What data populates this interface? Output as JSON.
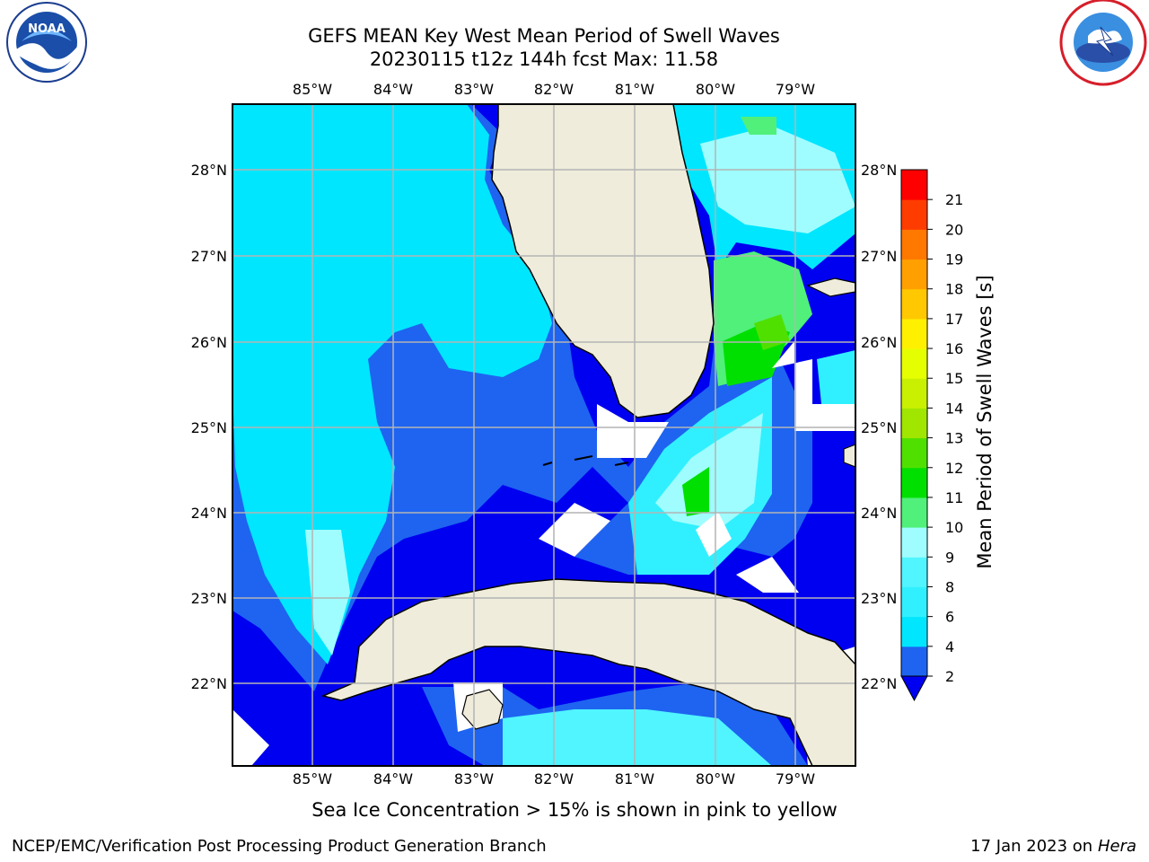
{
  "title": {
    "line1": "GEFS MEAN Key West Mean Period of Swell Waves",
    "line2": "20230115 t12z 144h fcst   Max: 11.58"
  },
  "note": "Sea Ice Concentration > 15% is shown in pink to yellow",
  "footer": {
    "left": "NCEP/EMC/Verification Post Processing Product Generation Branch",
    "date": "17 Jan 2023 on ",
    "machine": "Hera"
  },
  "logos": {
    "left": "NOAA",
    "right": "NATIONAL WEATHER SERVICE"
  },
  "map": {
    "lon_range": [
      -86.0,
      -78.25
    ],
    "lat_range": [
      21.0,
      28.75
    ],
    "lon_ticks": [
      "85°W",
      "84°W",
      "83°W",
      "82°W",
      "81°W",
      "80°W",
      "79°W"
    ],
    "lat_ticks": [
      "22°N",
      "23°N",
      "24°N",
      "25°N",
      "26°N",
      "27°N",
      "28°N"
    ],
    "gridlines": true,
    "land_color": "#efecdb",
    "regions": [
      "Florida",
      "Cuba",
      "Bahamas"
    ]
  },
  "colorbar": {
    "label": "Mean Period of Swell Waves [s]",
    "ticks": [
      "2",
      "4",
      "6",
      "8",
      "9",
      "10",
      "11",
      "12",
      "13",
      "14",
      "15",
      "16",
      "17",
      "18",
      "19",
      "20",
      "21"
    ],
    "extend": "min",
    "colors": [
      "#1e64f0",
      "#00e6ff",
      "#30f0ff",
      "#50f5ff",
      "#9ffdff",
      "#50f07a",
      "#00e000",
      "#50e000",
      "#a0e600",
      "#c8f000",
      "#e6ff00",
      "#fff000",
      "#ffc800",
      "#ffa000",
      "#ff7800",
      "#ff3c00",
      "#ff0000"
    ],
    "under_color": "#0000f0"
  }
}
